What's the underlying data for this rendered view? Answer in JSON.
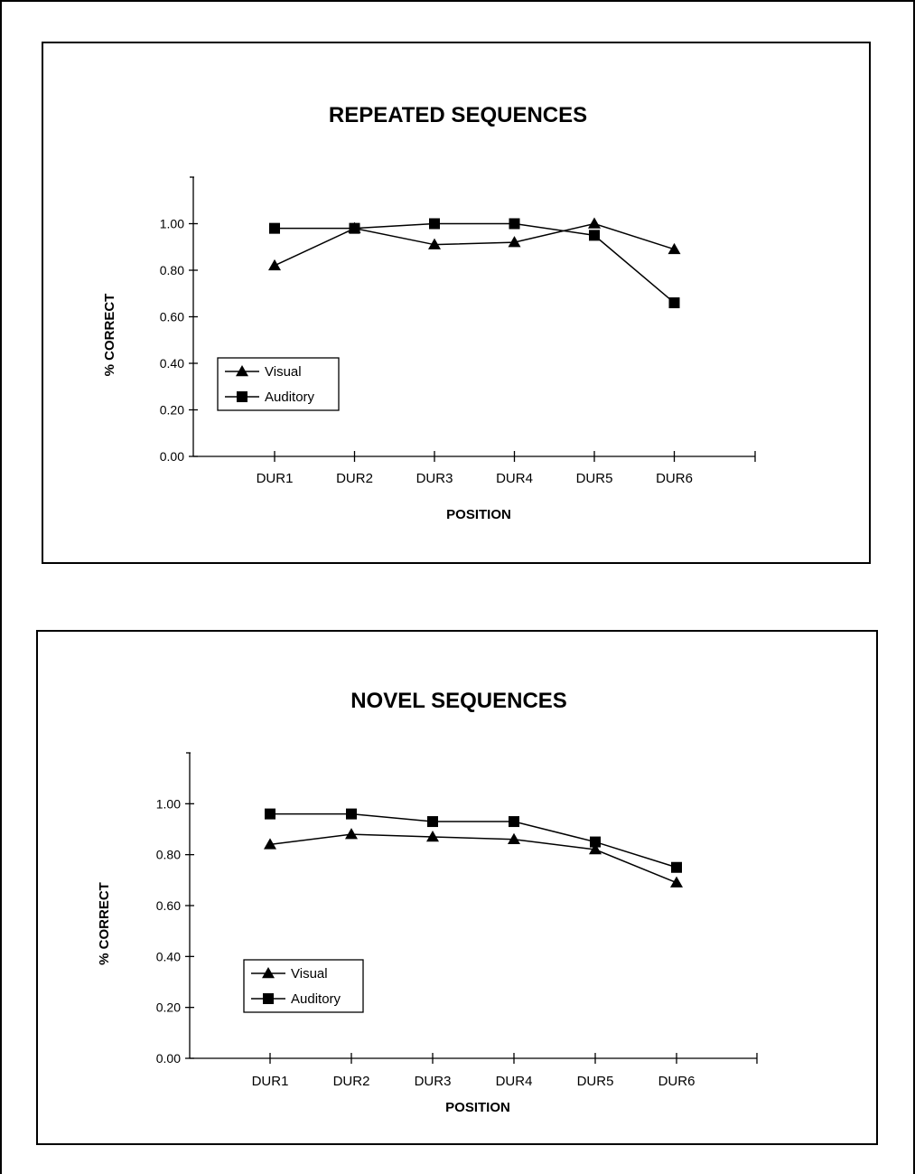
{
  "chart_data": [
    {
      "type": "line",
      "title": "REPEATED SEQUENCES",
      "xlabel": "POSITION",
      "ylabel": "% CORRECT",
      "categories": [
        "DUR1",
        "DUR2",
        "DUR3",
        "DUR4",
        "DUR5",
        "DUR6"
      ],
      "yticks": [
        "0.00",
        "0.20",
        "0.40",
        "0.60",
        "0.80",
        "1.00"
      ],
      "ylim": [
        0,
        1.2
      ],
      "grid": false,
      "legend": "bottom-left",
      "series": [
        {
          "name": "Visual",
          "marker": "triangle",
          "values": [
            0.82,
            0.98,
            0.91,
            0.92,
            1.0,
            0.89
          ]
        },
        {
          "name": "Auditory",
          "marker": "square",
          "values": [
            0.98,
            0.98,
            1.0,
            1.0,
            0.95,
            0.66
          ]
        }
      ]
    },
    {
      "type": "line",
      "title": "NOVEL SEQUENCES",
      "xlabel": "POSITION",
      "ylabel": "% CORRECT",
      "categories": [
        "DUR1",
        "DUR2",
        "DUR3",
        "DUR4",
        "DUR5",
        "DUR6"
      ],
      "yticks": [
        "0.00",
        "0.20",
        "0.40",
        "0.60",
        "0.80",
        "1.00"
      ],
      "ylim": [
        0,
        1.2
      ],
      "grid": false,
      "legend": "bottom-left",
      "series": [
        {
          "name": "Visual",
          "marker": "triangle",
          "values": [
            0.84,
            0.88,
            0.87,
            0.86,
            0.82,
            0.69
          ]
        },
        {
          "name": "Auditory",
          "marker": "square",
          "values": [
            0.96,
            0.96,
            0.93,
            0.93,
            0.85,
            0.75
          ]
        }
      ]
    }
  ]
}
